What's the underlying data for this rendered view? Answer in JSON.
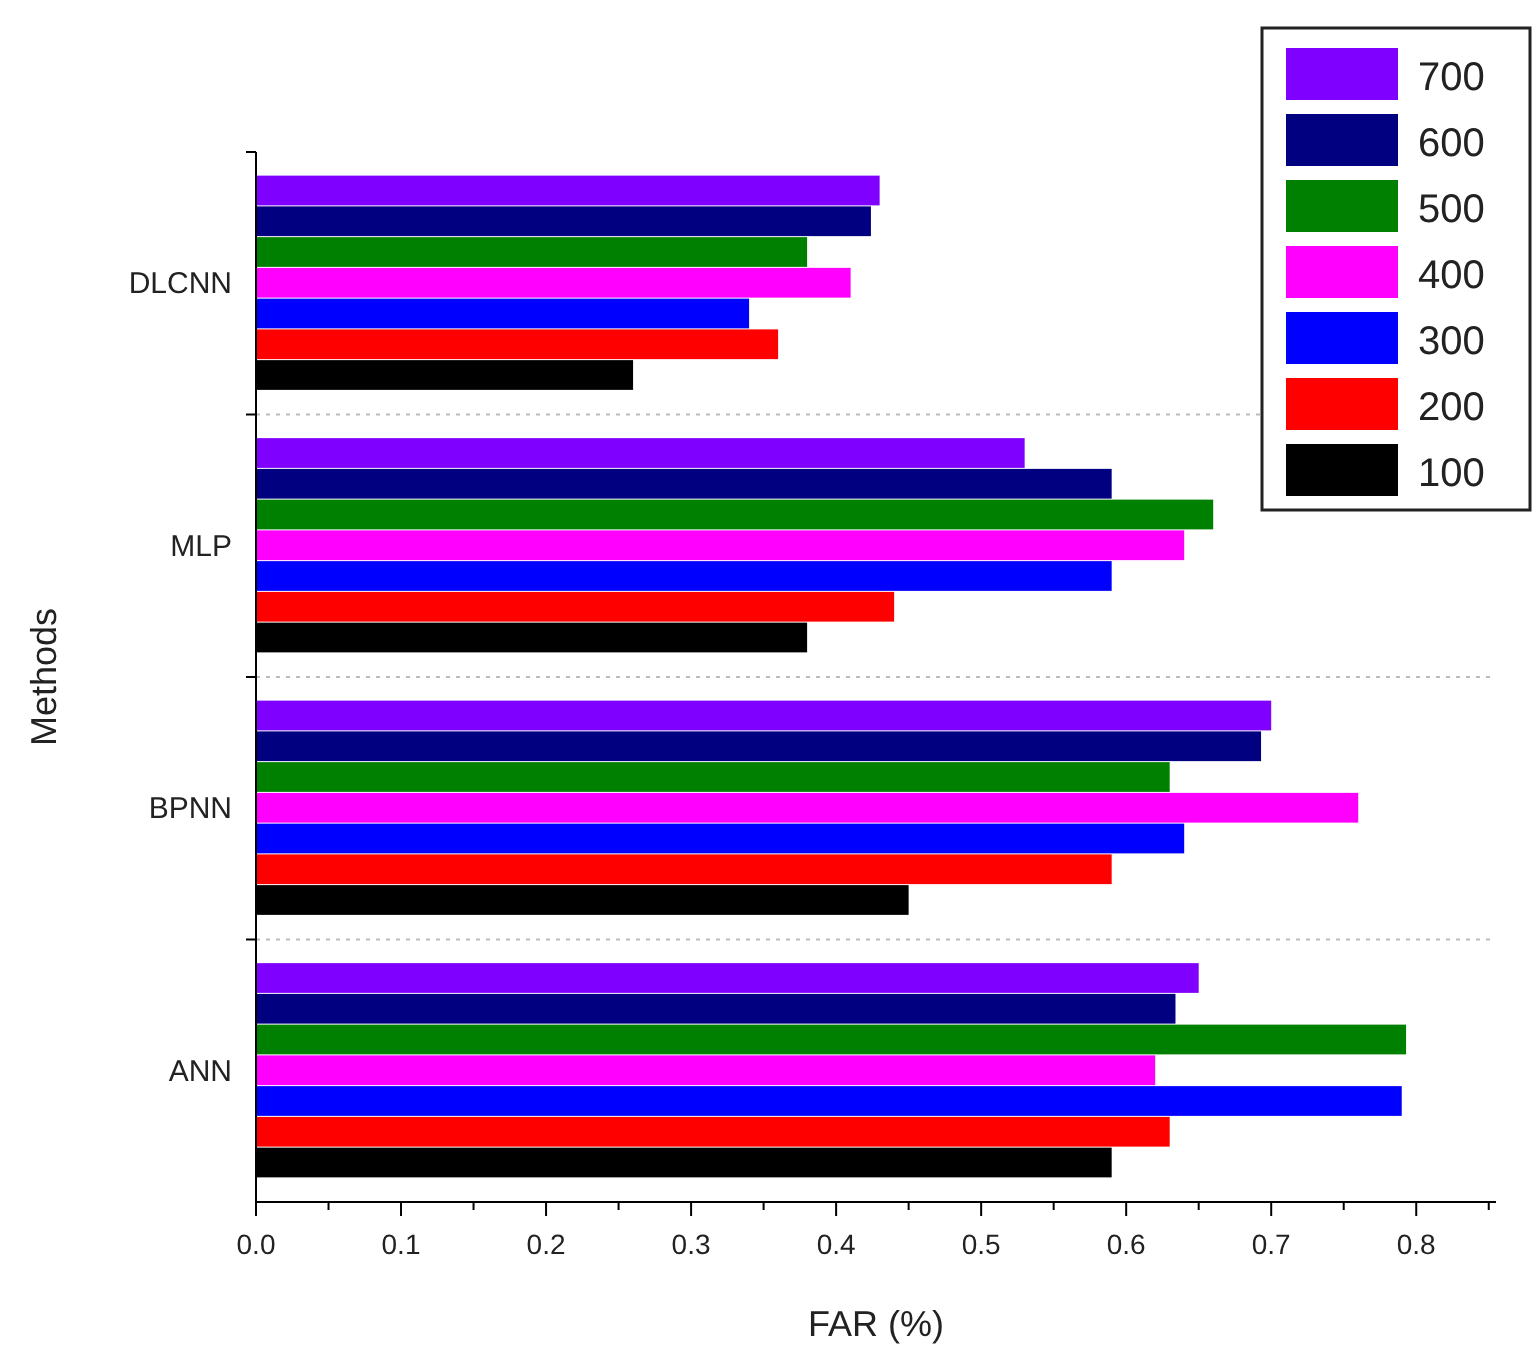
{
  "chart_data": {
    "type": "bar",
    "orientation": "horizontal",
    "xlabel": "FAR (%)",
    "ylabel": "Methods",
    "categories": [
      "DLCNN",
      "MLP",
      "BPNN",
      "ANN"
    ],
    "series": [
      {
        "name": "700",
        "color": "#8000ff",
        "values": [
          0.43,
          0.53,
          0.7,
          0.65
        ]
      },
      {
        "name": "600",
        "color": "#000080",
        "values": [
          0.424,
          0.59,
          0.693,
          0.634
        ]
      },
      {
        "name": "500",
        "color": "#008000",
        "values": [
          0.38,
          0.66,
          0.63,
          0.793
        ]
      },
      {
        "name": "400",
        "color": "#ff00ff",
        "values": [
          0.41,
          0.64,
          0.76,
          0.62
        ]
      },
      {
        "name": "300",
        "color": "#0000ff",
        "values": [
          0.34,
          0.59,
          0.64,
          0.79
        ]
      },
      {
        "name": "200",
        "color": "#ff0000",
        "values": [
          0.36,
          0.44,
          0.59,
          0.63
        ]
      },
      {
        "name": "100",
        "color": "#000000",
        "values": [
          0.26,
          0.38,
          0.45,
          0.59
        ]
      }
    ],
    "xlim": [
      0,
      0.855
    ],
    "xticks": [
      {
        "value": 0,
        "label": "0.0"
      },
      {
        "value": 0.05,
        "label": null
      },
      0.1,
      {
        "value": 0.15,
        "label": null
      },
      0.2,
      {
        "value": 0.25,
        "label": null
      },
      0.3,
      {
        "value": 0.35,
        "label": null
      },
      0.4,
      {
        "value": 0.45,
        "label": null
      },
      0.5,
      {
        "value": 0.55,
        "label": null
      },
      0.6,
      {
        "value": 0.65,
        "label": null
      },
      0.7,
      {
        "value": 0.75,
        "label": null
      },
      0.8,
      {
        "value": 0.85,
        "label": null
      }
    ],
    "grid": "y",
    "legend": "top right"
  }
}
